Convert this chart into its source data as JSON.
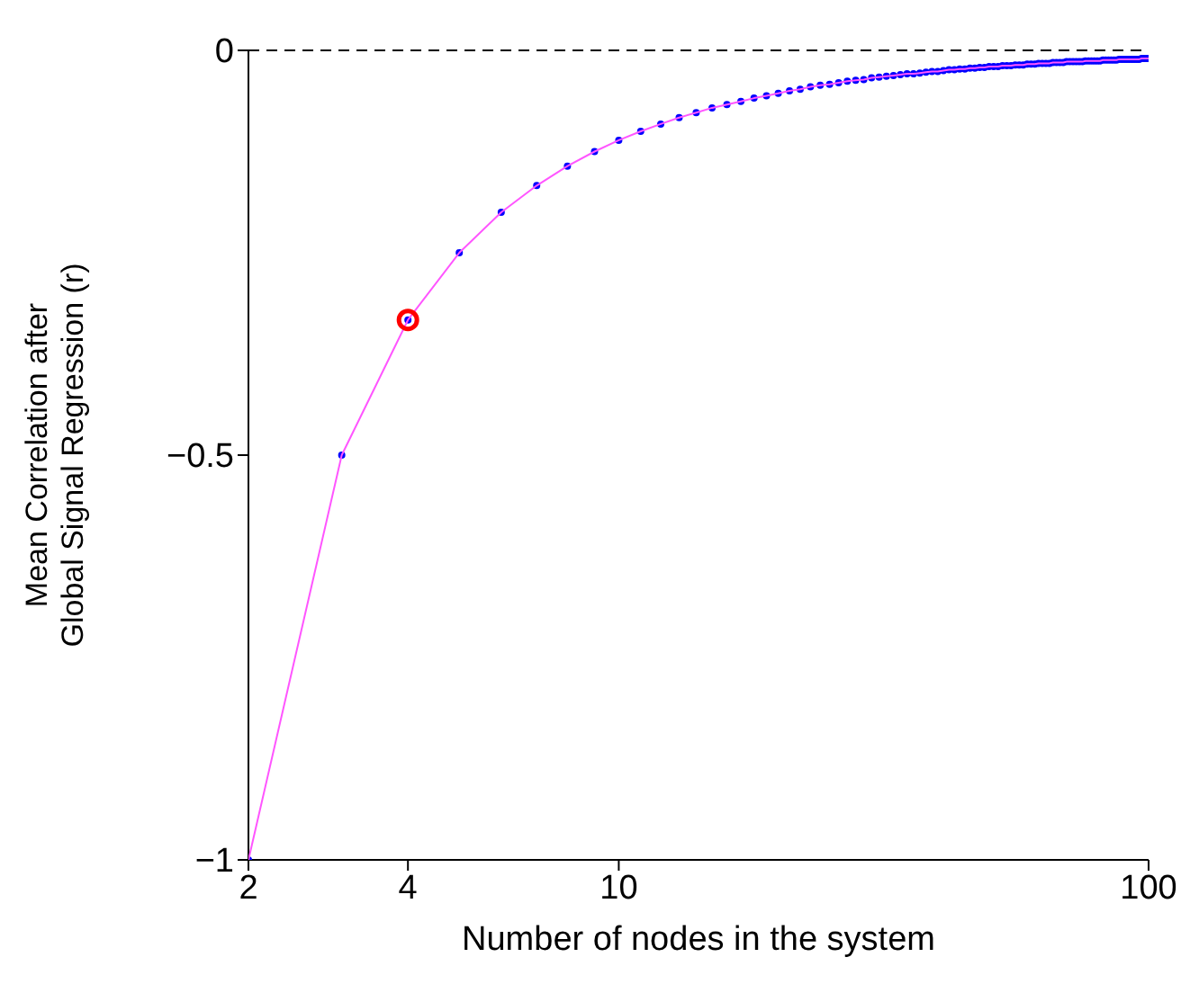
{
  "chart_data": {
    "type": "line",
    "xlabel": "Number of nodes in the system",
    "ylabel": "Mean Correlation after Global Signal Regression (r)",
    "log": "x",
    "xlim": [
      2,
      100
    ],
    "xticks": [
      2,
      4,
      10,
      100
    ],
    "ylim": [
      -1,
      0
    ],
    "yticks": [
      -1,
      {
        "value": -0.5,
        "label": "−0.5"
      },
      0
    ],
    "grid": false,
    "legend": false,
    "x": [
      2,
      3,
      4,
      5,
      6,
      7,
      8,
      9,
      10,
      11,
      12,
      13,
      14,
      15,
      16,
      17,
      18,
      19,
      20,
      21,
      22,
      23,
      24,
      25,
      26,
      27,
      28,
      29,
      30,
      31,
      32,
      33,
      34,
      35,
      36,
      37,
      38,
      39,
      40,
      41,
      42,
      43,
      44,
      45,
      46,
      47,
      48,
      49,
      50,
      51,
      52,
      53,
      54,
      55,
      56,
      57,
      58,
      59,
      60,
      61,
      62,
      63,
      64,
      65,
      66,
      67,
      68,
      69,
      70,
      71,
      72,
      73,
      74,
      75,
      76,
      77,
      78,
      79,
      80,
      81,
      82,
      83,
      84,
      85,
      86,
      87,
      88,
      89,
      90,
      91,
      92,
      93,
      94,
      95,
      96,
      97,
      98,
      99,
      100
    ],
    "ref_lines": [
      {
        "axis": "y",
        "value": 0,
        "color": "#000000",
        "line_style": "dashed"
      }
    ],
    "series": [
      {
        "type": "line",
        "color": "#ff55ff",
        "marker": "none",
        "line_style": "solid",
        "values": [
          -1,
          -0.5,
          -0.333,
          -0.25,
          -0.2,
          -0.167,
          -0.143,
          -0.125,
          -0.111,
          -0.1,
          -0.091,
          -0.083,
          -0.077,
          -0.071,
          -0.067,
          -0.063,
          -0.059,
          -0.056,
          -0.053,
          -0.05,
          -0.048,
          -0.045,
          -0.043,
          -0.042,
          -0.04,
          -0.038,
          -0.037,
          -0.036,
          -0.034,
          -0.033,
          -0.032,
          -0.031,
          -0.03,
          -0.029,
          -0.029,
          -0.028,
          -0.027,
          -0.026,
          -0.026,
          -0.025,
          -0.024,
          -0.024,
          -0.023,
          -0.023,
          -0.022,
          -0.022,
          -0.021,
          -0.021,
          -0.02,
          -0.02,
          -0.02,
          -0.019,
          -0.019,
          -0.019,
          -0.018,
          -0.018,
          -0.018,
          -0.017,
          -0.017,
          -0.017,
          -0.016,
          -0.016,
          -0.016,
          -0.016,
          -0.015,
          -0.015,
          -0.015,
          -0.015,
          -0.014,
          -0.014,
          -0.014,
          -0.014,
          -0.014,
          -0.014,
          -0.013,
          -0.013,
          -0.013,
          -0.013,
          -0.013,
          -0.013,
          -0.012,
          -0.012,
          -0.012,
          -0.012,
          -0.012,
          -0.012,
          -0.011,
          -0.011,
          -0.011,
          -0.011,
          -0.011,
          -0.011,
          -0.011,
          -0.011,
          -0.011,
          -0.01,
          -0.01,
          -0.01,
          -0.01
        ]
      },
      {
        "type": "scatter",
        "color": "#0000ff",
        "marker": "circle",
        "values": [
          -1,
          -0.5,
          -0.333,
          -0.25,
          -0.2,
          -0.167,
          -0.143,
          -0.125,
          -0.111,
          -0.1,
          -0.091,
          -0.083,
          -0.077,
          -0.071,
          -0.067,
          -0.063,
          -0.059,
          -0.056,
          -0.053,
          -0.05,
          -0.048,
          -0.045,
          -0.043,
          -0.042,
          -0.04,
          -0.038,
          -0.037,
          -0.036,
          -0.034,
          -0.033,
          -0.032,
          -0.031,
          -0.03,
          -0.029,
          -0.029,
          -0.028,
          -0.027,
          -0.026,
          -0.026,
          -0.025,
          -0.024,
          -0.024,
          -0.023,
          -0.023,
          -0.022,
          -0.022,
          -0.021,
          -0.021,
          -0.02,
          -0.02,
          -0.02,
          -0.019,
          -0.019,
          -0.019,
          -0.018,
          -0.018,
          -0.018,
          -0.017,
          -0.017,
          -0.017,
          -0.016,
          -0.016,
          -0.016,
          -0.016,
          -0.015,
          -0.015,
          -0.015,
          -0.015,
          -0.014,
          -0.014,
          -0.014,
          -0.014,
          -0.014,
          -0.014,
          -0.013,
          -0.013,
          -0.013,
          -0.013,
          -0.013,
          -0.013,
          -0.012,
          -0.012,
          -0.012,
          -0.012,
          -0.012,
          -0.012,
          -0.011,
          -0.011,
          -0.011,
          -0.011,
          -0.011,
          -0.011,
          -0.011,
          -0.011,
          -0.011,
          -0.01,
          -0.01,
          -0.01,
          -0.01
        ]
      },
      {
        "type": "scatter",
        "color": "#ff0000",
        "marker": "circle",
        "x": [
          4
        ],
        "values": [
          -0.333
        ]
      }
    ]
  }
}
